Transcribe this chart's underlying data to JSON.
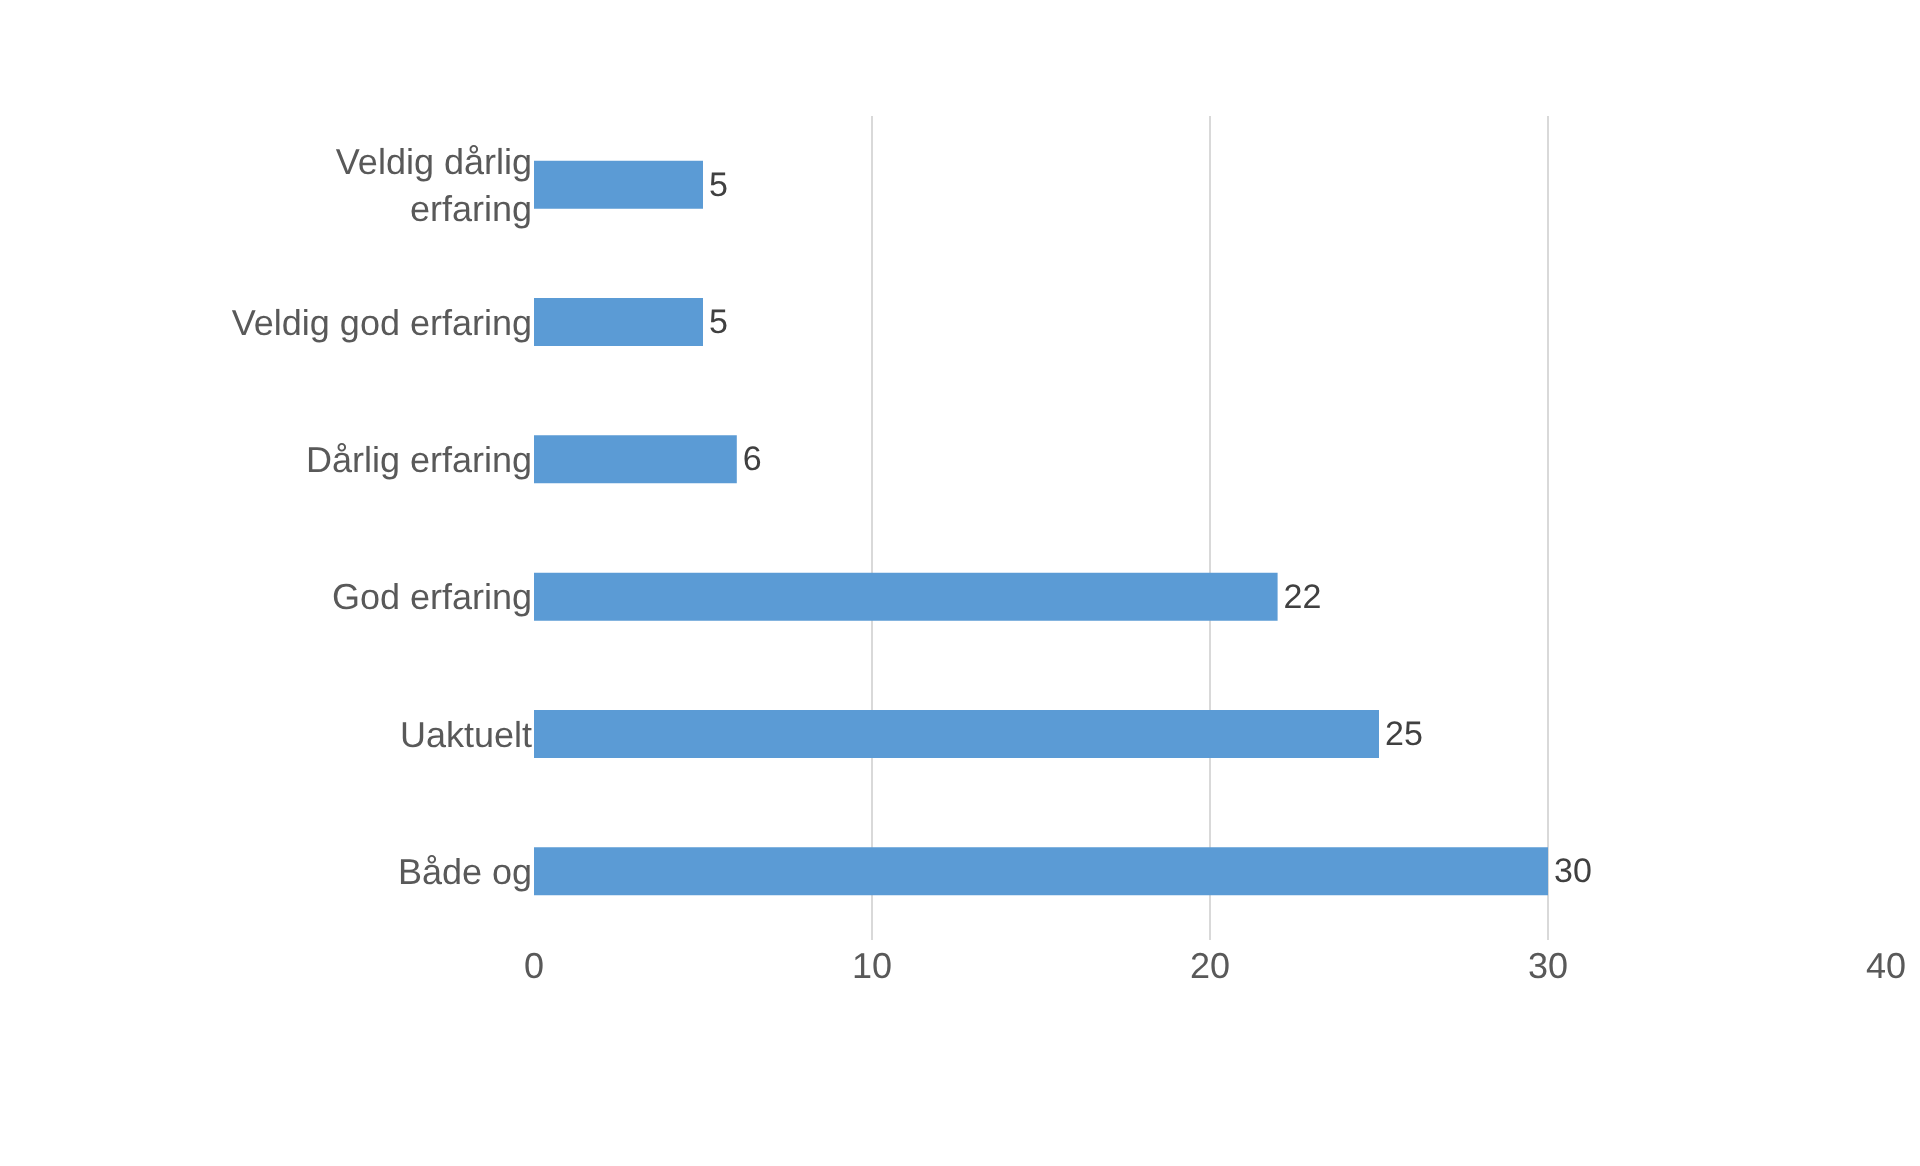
{
  "chart_data": {
    "type": "bar",
    "orientation": "horizontal",
    "categories": [
      "Veldig dårlig erfaring",
      "Veldig god erfaring",
      "Dårlig erfaring",
      "God erfaring",
      "Uaktuelt",
      "Både og"
    ],
    "values": [
      5,
      5,
      6,
      22,
      25,
      30
    ],
    "color": "#5b9bd5",
    "xlim": [
      0,
      40
    ],
    "xticks": [
      0,
      10,
      20,
      30,
      40
    ],
    "grid": "x",
    "data_labels": true,
    "legend": false
  }
}
